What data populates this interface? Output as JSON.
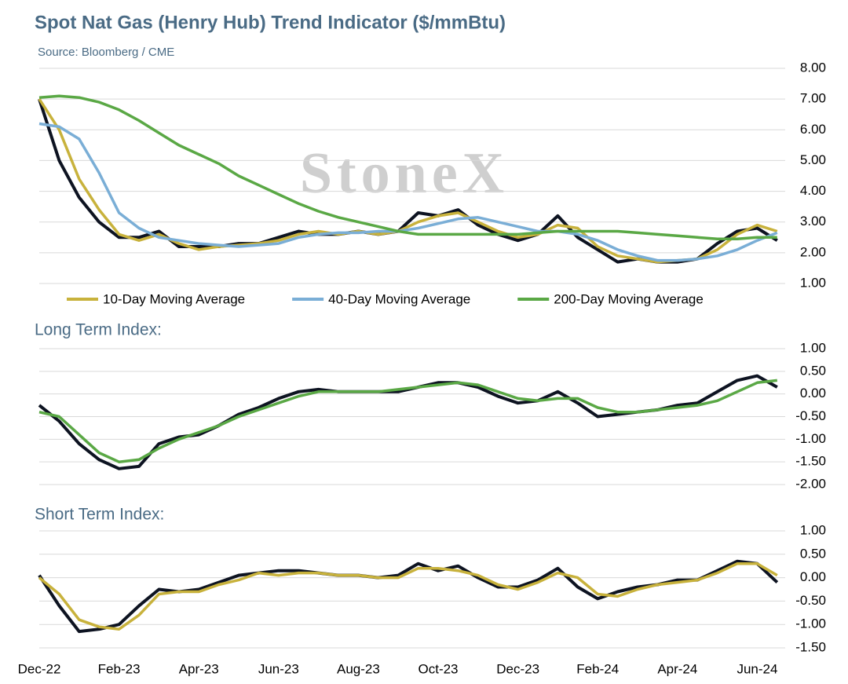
{
  "chart_data": [
    {
      "type": "line",
      "title": "Spot Nat Gas (Henry Hub) Trend Indicator ($/mmBtu)",
      "subtitle": "Source: Bloomberg / CME",
      "annotation": "StoneX",
      "ylim": [
        1,
        8
      ],
      "yticks": [
        {
          "value": 1,
          "label": "1.00"
        },
        {
          "value": 2,
          "label": "2.00"
        },
        {
          "value": 3,
          "label": "3.00"
        },
        {
          "value": 4,
          "label": "4.00"
        },
        {
          "value": 5,
          "label": "5.00"
        },
        {
          "value": 6,
          "label": "6.00"
        },
        {
          "value": 7,
          "label": "7.00"
        },
        {
          "value": 8,
          "label": "8.00"
        }
      ],
      "grid": true,
      "legend": "bottom",
      "series": [
        {
          "color": "#0d1321",
          "values": [
            7.0,
            5.0,
            3.8,
            3.0,
            2.5,
            2.5,
            2.7,
            2.2,
            2.2,
            2.2,
            2.3,
            2.3,
            2.5,
            2.7,
            2.6,
            2.6,
            2.7,
            2.6,
            2.7,
            3.3,
            3.2,
            3.4,
            2.9,
            2.6,
            2.4,
            2.6,
            3.2,
            2.5,
            2.1,
            1.7,
            1.8,
            1.7,
            1.7,
            1.8,
            2.3,
            2.7,
            2.8,
            2.4
          ]
        },
        {
          "name": "10-Day Moving Average",
          "color": "#c8b23c",
          "values": [
            7.0,
            6.0,
            4.4,
            3.4,
            2.6,
            2.4,
            2.6,
            2.3,
            2.1,
            2.2,
            2.25,
            2.3,
            2.4,
            2.6,
            2.7,
            2.6,
            2.7,
            2.6,
            2.7,
            3.0,
            3.2,
            3.3,
            3.0,
            2.7,
            2.5,
            2.6,
            2.9,
            2.8,
            2.2,
            1.9,
            1.8,
            1.7,
            1.75,
            1.8,
            2.1,
            2.6,
            2.9,
            2.7
          ]
        },
        {
          "name": "40-Day Moving Average",
          "color": "#7aaed6",
          "values": [
            6.2,
            6.1,
            5.7,
            4.6,
            3.3,
            2.8,
            2.5,
            2.4,
            2.3,
            2.25,
            2.2,
            2.25,
            2.3,
            2.5,
            2.6,
            2.65,
            2.65,
            2.7,
            2.7,
            2.8,
            2.95,
            3.1,
            3.15,
            3.0,
            2.85,
            2.7,
            2.7,
            2.6,
            2.4,
            2.1,
            1.9,
            1.75,
            1.75,
            1.8,
            1.9,
            2.1,
            2.4,
            2.65
          ]
        },
        {
          "name": "200-Day Moving Average",
          "color": "#5aa845",
          "values": [
            7.05,
            7.1,
            7.05,
            6.9,
            6.65,
            6.3,
            5.9,
            5.5,
            5.2,
            4.9,
            4.5,
            4.2,
            3.9,
            3.6,
            3.35,
            3.15,
            3.0,
            2.85,
            2.7,
            2.6,
            2.6,
            2.6,
            2.6,
            2.6,
            2.6,
            2.65,
            2.7,
            2.7,
            2.7,
            2.7,
            2.65,
            2.6,
            2.55,
            2.5,
            2.45,
            2.45,
            2.5,
            2.5
          ]
        }
      ]
    },
    {
      "type": "line",
      "title": "Long Term Index:",
      "ylim": [
        -2,
        1
      ],
      "yticks": [
        {
          "value": -2,
          "label": "-2.00"
        },
        {
          "value": -1.5,
          "label": "-1.50"
        },
        {
          "value": -1,
          "label": "-1.00"
        },
        {
          "value": -0.5,
          "label": "-0.50"
        },
        {
          "value": 0,
          "label": "0.00"
        },
        {
          "value": 0.5,
          "label": "0.50"
        },
        {
          "value": 1,
          "label": "1.00"
        }
      ],
      "grid": true,
      "series": [
        {
          "color": "#0d1321",
          "values": [
            -0.25,
            -0.6,
            -1.1,
            -1.45,
            -1.65,
            -1.6,
            -1.1,
            -0.95,
            -0.9,
            -0.7,
            -0.45,
            -0.3,
            -0.1,
            0.05,
            0.1,
            0.05,
            0.05,
            0.05,
            0.05,
            0.15,
            0.25,
            0.25,
            0.15,
            -0.05,
            -0.2,
            -0.15,
            0.05,
            -0.2,
            -0.5,
            -0.45,
            -0.4,
            -0.35,
            -0.25,
            -0.2,
            0.05,
            0.3,
            0.4,
            0.15
          ]
        },
        {
          "color": "#5aa845",
          "values": [
            -0.4,
            -0.5,
            -0.9,
            -1.3,
            -1.5,
            -1.45,
            -1.2,
            -1.0,
            -0.85,
            -0.7,
            -0.5,
            -0.35,
            -0.2,
            -0.05,
            0.05,
            0.05,
            0.05,
            0.05,
            0.1,
            0.15,
            0.2,
            0.25,
            0.2,
            0.05,
            -0.1,
            -0.15,
            -0.1,
            -0.1,
            -0.3,
            -0.4,
            -0.4,
            -0.35,
            -0.3,
            -0.25,
            -0.15,
            0.05,
            0.25,
            0.3
          ]
        }
      ]
    },
    {
      "type": "line",
      "title": "Short Term Index:",
      "x": [
        0,
        0.5,
        1,
        1.5,
        2,
        2.5,
        3,
        3.5,
        4,
        4.5,
        5,
        5.5,
        6,
        6.5,
        7,
        7.5,
        8,
        8.5,
        9,
        9.5,
        10,
        10.5,
        11,
        11.5,
        12,
        12.5,
        13,
        13.5,
        14,
        14.5,
        15,
        15.5,
        16,
        16.5,
        17,
        17.5,
        18,
        18.5
      ],
      "xlim": [
        0,
        18.7
      ],
      "xticks": [
        {
          "value": 0,
          "label": "Dec-22"
        },
        {
          "value": 2,
          "label": "Feb-23"
        },
        {
          "value": 4,
          "label": "Apr-23"
        },
        {
          "value": 6,
          "label": "Jun-23"
        },
        {
          "value": 8,
          "label": "Aug-23"
        },
        {
          "value": 10,
          "label": "Oct-23"
        },
        {
          "value": 12,
          "label": "Dec-23"
        },
        {
          "value": 14,
          "label": "Feb-24"
        },
        {
          "value": 16,
          "label": "Apr-24"
        },
        {
          "value": 18,
          "label": "Jun-24"
        }
      ],
      "ylim": [
        -1.5,
        1
      ],
      "yticks": [
        {
          "value": -1.5,
          "label": "-1.50"
        },
        {
          "value": -1,
          "label": "-1.00"
        },
        {
          "value": -0.5,
          "label": "-0.50"
        },
        {
          "value": 0,
          "label": "0.00"
        },
        {
          "value": 0.5,
          "label": "0.50"
        },
        {
          "value": 1,
          "label": "1.00"
        }
      ],
      "grid": true,
      "series": [
        {
          "color": "#0d1321",
          "values": [
            0.05,
            -0.6,
            -1.15,
            -1.1,
            -1.0,
            -0.6,
            -0.25,
            -0.3,
            -0.25,
            -0.1,
            0.05,
            0.1,
            0.15,
            0.15,
            0.1,
            0.05,
            0.05,
            0.0,
            0.05,
            0.3,
            0.15,
            0.25,
            0.0,
            -0.2,
            -0.2,
            -0.05,
            0.2,
            -0.2,
            -0.45,
            -0.3,
            -0.2,
            -0.15,
            -0.05,
            -0.05,
            0.15,
            0.35,
            0.3,
            -0.1
          ]
        },
        {
          "color": "#c8b23c",
          "values": [
            0.0,
            -0.35,
            -0.9,
            -1.05,
            -1.1,
            -0.8,
            -0.35,
            -0.3,
            -0.3,
            -0.15,
            -0.05,
            0.1,
            0.05,
            0.1,
            0.1,
            0.05,
            0.05,
            0.0,
            0.0,
            0.2,
            0.2,
            0.15,
            0.05,
            -0.15,
            -0.25,
            -0.1,
            0.1,
            0.0,
            -0.35,
            -0.4,
            -0.25,
            -0.15,
            -0.1,
            -0.05,
            0.1,
            0.3,
            0.3,
            0.05
          ]
        }
      ]
    }
  ]
}
